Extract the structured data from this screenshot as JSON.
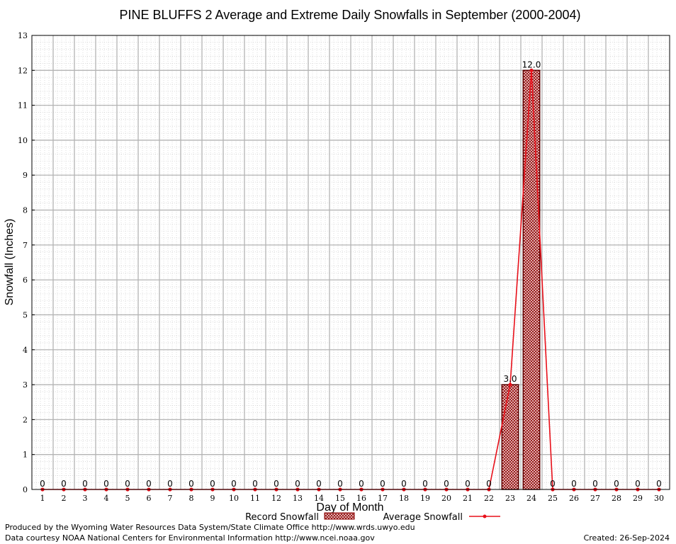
{
  "chart_data": {
    "type": "bar",
    "title": "PINE BLUFFS 2 Average and Extreme Daily Snowfalls in September (2000-2004)",
    "xlabel": "Day of Month",
    "ylabel": "Snowfall (Inches)",
    "categories": [
      "1",
      "2",
      "3",
      "4",
      "5",
      "6",
      "7",
      "8",
      "9",
      "10",
      "11",
      "12",
      "13",
      "14",
      "15",
      "16",
      "17",
      "18",
      "19",
      "20",
      "21",
      "22",
      "23",
      "24",
      "25",
      "26",
      "27",
      "28",
      "29",
      "30"
    ],
    "ylim": [
      0,
      13
    ],
    "yticks": [
      "0",
      "1",
      "2",
      "3",
      "4",
      "5",
      "6",
      "7",
      "8",
      "9",
      "10",
      "11",
      "12",
      "13"
    ],
    "grid": true,
    "legend_position": "bottom-center",
    "series": [
      {
        "name": "Record Snowfall",
        "type": "bar",
        "color": "#8b0000",
        "values": [
          0,
          0,
          0,
          0,
          0,
          0,
          0,
          0,
          0,
          0,
          0,
          0,
          0,
          0,
          0,
          0,
          0,
          0,
          0,
          0,
          0,
          0,
          3.0,
          12.0,
          0,
          0,
          0,
          0,
          0,
          0
        ],
        "labels": [
          "0",
          "0",
          "0",
          "0",
          "0",
          "0",
          "0",
          "0",
          "0",
          "0",
          "0",
          "0",
          "0",
          "0",
          "0",
          "0",
          "0",
          "0",
          "0",
          "0",
          "0",
          "0",
          "3.0",
          "12.0",
          "0",
          "0",
          "0",
          "0",
          "0",
          "0"
        ]
      },
      {
        "name": "Average Snowfall",
        "type": "line",
        "color": "#e8101a",
        "values": [
          0,
          0,
          0,
          0,
          0,
          0,
          0,
          0,
          0,
          0,
          0,
          0,
          0,
          0,
          0,
          0,
          0,
          0,
          0,
          0,
          0,
          0,
          3.0,
          12.0,
          0,
          0,
          0,
          0,
          0,
          0
        ]
      }
    ],
    "footer_left": [
      "Produced by the Wyoming Water Resources Data System/State Climate Office http://www.wrds.uwyo.edu",
      "Data courtesy NOAA National Centers for Environmental Information http://www.ncei.noaa.gov"
    ],
    "footer_right": "Created:  26-Sep-2024"
  }
}
